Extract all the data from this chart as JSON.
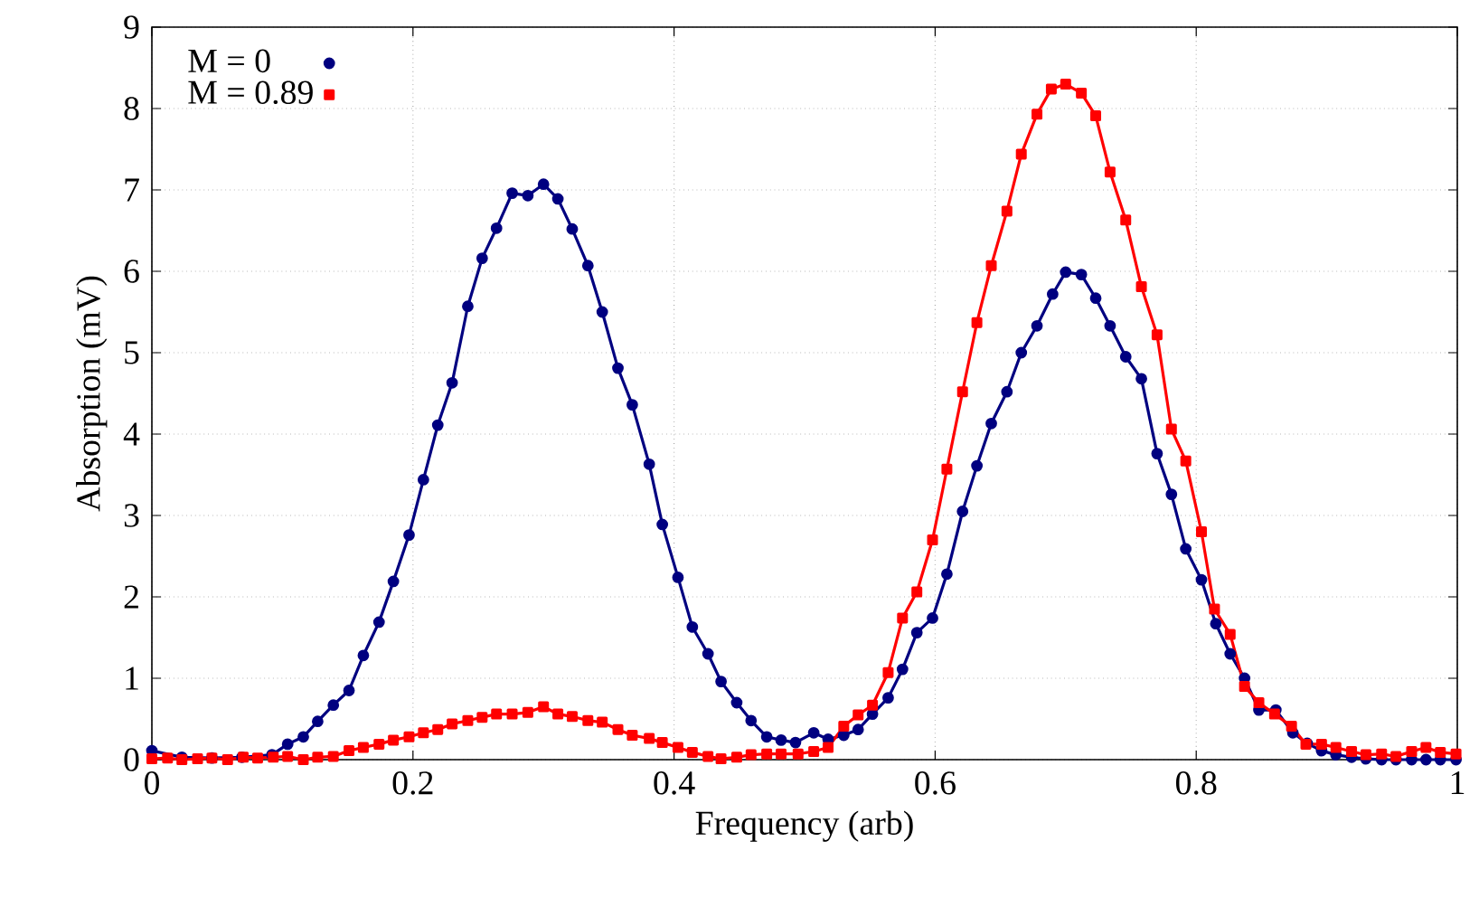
{
  "chart_data": {
    "type": "line",
    "xlabel": "Frequency (arb)",
    "ylabel": "Absorption (mV)",
    "xlim": [
      0,
      1
    ],
    "ylim": [
      0,
      9
    ],
    "xticks": [
      0,
      0.2,
      0.4,
      0.6,
      0.8,
      1
    ],
    "yticks": [
      0,
      1,
      2,
      3,
      4,
      5,
      6,
      7,
      8,
      9
    ],
    "grid": true,
    "legend": "top left",
    "line_style": "solid",
    "series": [
      {
        "name": "M = 0",
        "color": "#000080",
        "marker": "circle",
        "x": [
          0.0,
          0.023,
          0.046,
          0.069,
          0.092,
          0.104,
          0.116,
          0.127,
          0.139,
          0.151,
          0.162,
          0.174,
          0.185,
          0.197,
          0.208,
          0.219,
          0.23,
          0.242,
          0.253,
          0.264,
          0.276,
          0.288,
          0.3,
          0.311,
          0.322,
          0.334,
          0.345,
          0.357,
          0.368,
          0.381,
          0.391,
          0.403,
          0.414,
          0.426,
          0.436,
          0.448,
          0.459,
          0.471,
          0.482,
          0.493,
          0.507,
          0.518,
          0.53,
          0.541,
          0.552,
          0.564,
          0.575,
          0.586,
          0.598,
          0.609,
          0.621,
          0.632,
          0.643,
          0.655,
          0.666,
          0.678,
          0.69,
          0.7,
          0.712,
          0.723,
          0.734,
          0.746,
          0.758,
          0.77,
          0.781,
          0.792,
          0.804,
          0.815,
          0.826,
          0.837,
          0.848,
          0.861,
          0.874,
          0.885,
          0.896,
          0.907,
          0.919,
          0.93,
          0.942,
          0.953,
          0.965,
          0.976,
          0.987,
          0.999
        ],
        "values": [
          0.11,
          0.03,
          0.02,
          0.03,
          0.06,
          0.19,
          0.28,
          0.47,
          0.67,
          0.85,
          1.28,
          1.69,
          2.19,
          2.76,
          3.44,
          4.11,
          4.63,
          5.57,
          6.16,
          6.53,
          6.96,
          6.93,
          7.07,
          6.89,
          6.52,
          6.07,
          5.5,
          4.81,
          4.36,
          3.63,
          2.89,
          2.24,
          1.63,
          1.3,
          0.96,
          0.7,
          0.48,
          0.28,
          0.24,
          0.21,
          0.33,
          0.25,
          0.3,
          0.37,
          0.56,
          0.76,
          1.11,
          1.56,
          1.74,
          2.28,
          3.05,
          3.61,
          4.13,
          4.52,
          5.0,
          5.33,
          5.72,
          5.99,
          5.96,
          5.67,
          5.33,
          4.95,
          4.68,
          3.76,
          3.26,
          2.59,
          2.21,
          1.67,
          1.3,
          1.0,
          0.61,
          0.61,
          0.33,
          0.2,
          0.11,
          0.06,
          0.03,
          0.01,
          0.0,
          0.0,
          0.0,
          0.0,
          0.0,
          0.0
        ]
      },
      {
        "name": "M = 0.89",
        "color": "#ff0000",
        "marker": "square",
        "x": [
          0.0,
          0.012,
          0.023,
          0.035,
          0.046,
          0.058,
          0.07,
          0.081,
          0.093,
          0.104,
          0.116,
          0.127,
          0.139,
          0.151,
          0.162,
          0.174,
          0.185,
          0.197,
          0.208,
          0.219,
          0.23,
          0.242,
          0.253,
          0.264,
          0.276,
          0.288,
          0.3,
          0.311,
          0.322,
          0.334,
          0.345,
          0.357,
          0.368,
          0.381,
          0.391,
          0.403,
          0.414,
          0.426,
          0.436,
          0.448,
          0.459,
          0.471,
          0.482,
          0.495,
          0.507,
          0.518,
          0.53,
          0.541,
          0.552,
          0.564,
          0.575,
          0.586,
          0.598,
          0.609,
          0.621,
          0.632,
          0.643,
          0.655,
          0.666,
          0.678,
          0.689,
          0.7,
          0.712,
          0.723,
          0.734,
          0.746,
          0.758,
          0.77,
          0.781,
          0.792,
          0.804,
          0.814,
          0.826,
          0.837,
          0.848,
          0.86,
          0.873,
          0.884,
          0.896,
          0.907,
          0.919,
          0.93,
          0.942,
          0.953,
          0.965,
          0.976,
          0.987,
          0.999
        ],
        "values": [
          0.01,
          0.02,
          0.0,
          0.01,
          0.02,
          0.0,
          0.03,
          0.02,
          0.03,
          0.04,
          0.0,
          0.03,
          0.04,
          0.11,
          0.15,
          0.19,
          0.24,
          0.28,
          0.33,
          0.37,
          0.44,
          0.48,
          0.52,
          0.56,
          0.56,
          0.58,
          0.65,
          0.56,
          0.53,
          0.48,
          0.46,
          0.37,
          0.3,
          0.26,
          0.21,
          0.15,
          0.09,
          0.04,
          0.01,
          0.03,
          0.06,
          0.07,
          0.07,
          0.07,
          0.1,
          0.15,
          0.41,
          0.55,
          0.67,
          1.07,
          1.74,
          2.06,
          2.7,
          3.57,
          4.52,
          5.37,
          6.07,
          6.74,
          7.44,
          7.93,
          8.24,
          8.3,
          8.19,
          7.91,
          7.22,
          6.63,
          5.81,
          5.22,
          4.06,
          3.67,
          2.8,
          1.85,
          1.54,
          0.9,
          0.7,
          0.56,
          0.41,
          0.19,
          0.19,
          0.15,
          0.1,
          0.06,
          0.07,
          0.04,
          0.1,
          0.15,
          0.09,
          0.07
        ]
      }
    ]
  }
}
